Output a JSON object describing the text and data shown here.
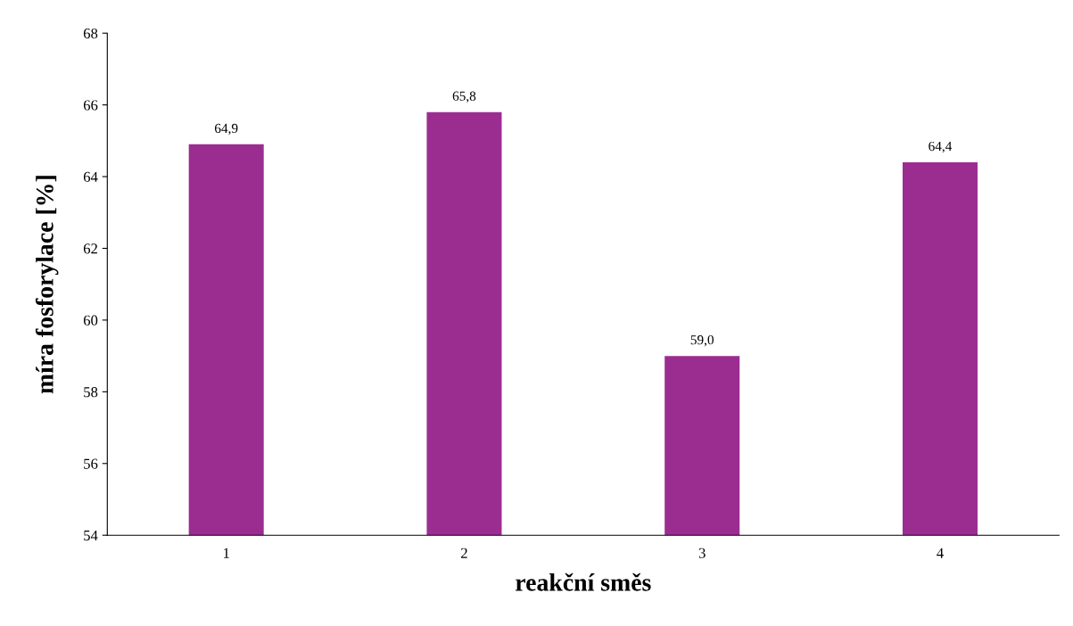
{
  "chart_data": {
    "type": "bar",
    "xlabel": "reakční směs",
    "ylabel": "míra fosforylace [%]",
    "categories": [
      "1",
      "2",
      "3",
      "4"
    ],
    "values": [
      64.9,
      65.8,
      59.0,
      64.4
    ],
    "value_labels": [
      "64,9",
      "65,8",
      "59,0",
      "64,4"
    ],
    "color": "#9b2d91",
    "ylim": [
      54,
      68
    ],
    "yticks": [
      54,
      56,
      58,
      60,
      62,
      64,
      66,
      68
    ],
    "grid": false,
    "legend": false
  }
}
